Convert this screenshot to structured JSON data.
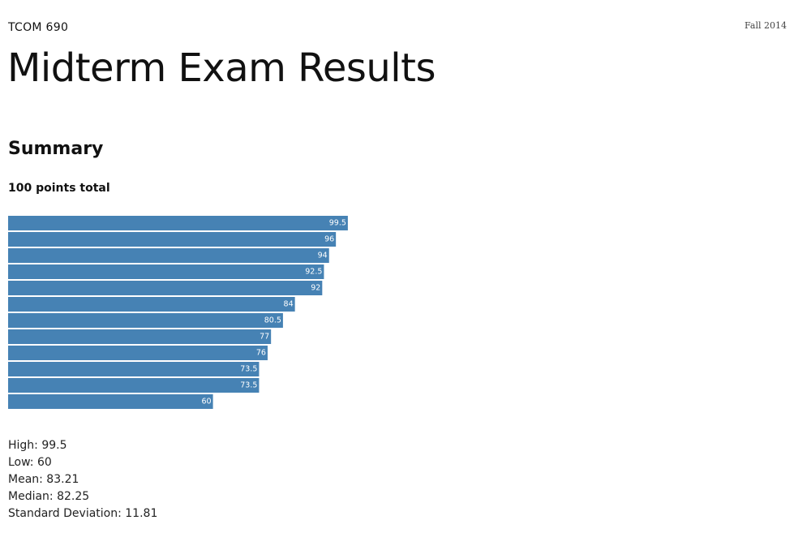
{
  "header": {
    "course": "TCOM 690",
    "term": "Fall 2014",
    "title": "Midterm Exam Results"
  },
  "summary": {
    "heading": "Summary",
    "points_total": "100 points total"
  },
  "colors": {
    "bar": "#4682b4",
    "label": "#ffffff"
  },
  "chart_data": {
    "type": "bar",
    "orientation": "horizontal",
    "values": [
      99.5,
      96,
      94,
      92.5,
      92,
      84,
      80.5,
      77,
      76,
      73.5,
      73.5,
      60
    ],
    "labels": [
      "99.5",
      "96",
      "94",
      "92.5",
      "92",
      "84",
      "80.5",
      "77",
      "76",
      "73.5",
      "73.5",
      "60"
    ],
    "xlim": [
      0,
      100
    ],
    "grid": false
  },
  "stats": [
    "High: 99.5",
    "Low: 60",
    "Mean: 83.21",
    "Median: 82.25",
    "Standard Deviation: 11.81"
  ]
}
